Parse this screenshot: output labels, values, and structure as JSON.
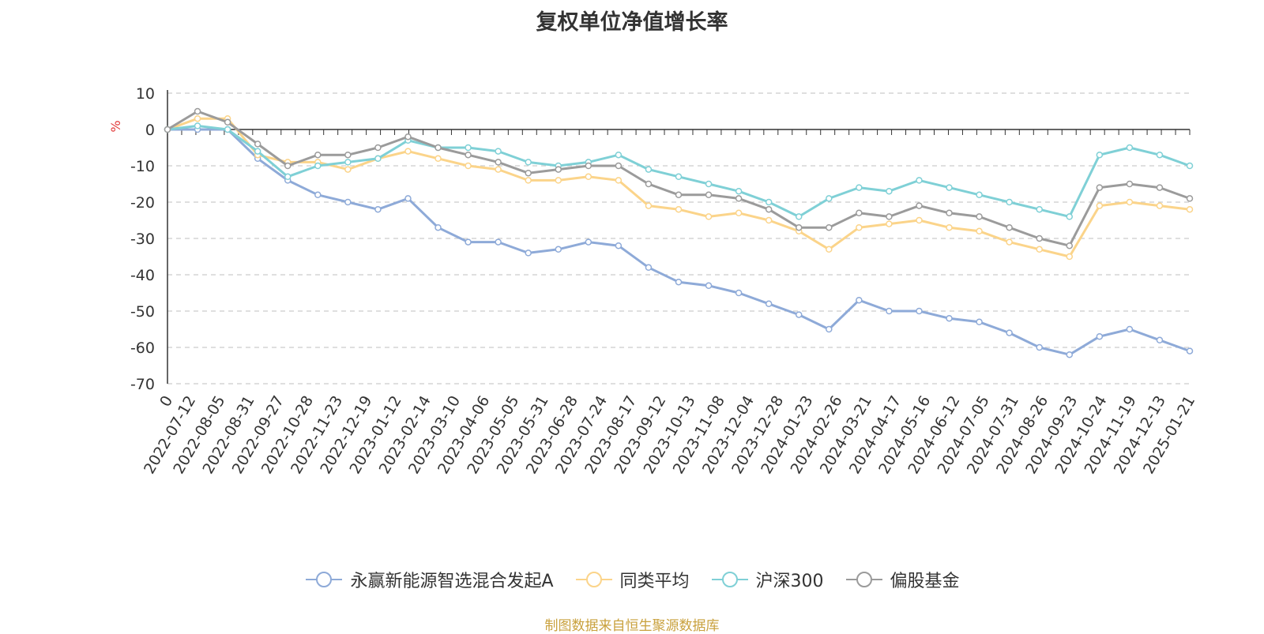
{
  "chart_data": {
    "type": "line",
    "title": "复权单位净值增长率",
    "ylabel": "%",
    "ylim": [
      -70,
      10
    ],
    "yticks": [
      10,
      0,
      -10,
      -20,
      -30,
      -40,
      -50,
      -60,
      -70
    ],
    "grid": true,
    "legend_position": "bottom",
    "x_dates": [
      "2022-07-12",
      "2022-08-05",
      "2022-08-31",
      "2022-09-27",
      "2022-10-28",
      "2022-11-23",
      "2022-12-19",
      "2023-01-12",
      "2023-02-14",
      "2023-03-10",
      "2023-04-06",
      "2023-05-05",
      "2023-05-31",
      "2023-06-28",
      "2023-07-24",
      "2023-08-17",
      "2023-09-12",
      "2023-10-13",
      "2023-11-08",
      "2023-12-04",
      "2023-12-28",
      "2024-01-23",
      "2024-02-26",
      "2024-03-21",
      "2024-04-17",
      "2024-05-16",
      "2024-06-12",
      "2024-07-05",
      "2024-07-31",
      "2024-08-26",
      "2024-09-23",
      "2024-10-24",
      "2024-11-19",
      "2024-12-13",
      "2025-01-21"
    ],
    "x_first_label": "0",
    "series": [
      {
        "name": "永赢新能源智选混合发起A",
        "color": "#8eaad8",
        "values": [
          0,
          0,
          0,
          -8,
          -14,
          -18,
          -20,
          -22,
          -19,
          -27,
          -31,
          -31,
          -34,
          -33,
          -31,
          -32,
          -38,
          -42,
          -43,
          -45,
          -48,
          -51,
          -55,
          -47,
          -50,
          -50,
          -52,
          -53,
          -56,
          -60,
          -62,
          -57,
          -55,
          -58,
          -61
        ]
      },
      {
        "name": "同类平均",
        "color": "#fbd48a",
        "values": [
          0,
          3,
          3,
          -7,
          -9,
          -9,
          -11,
          -8,
          -6,
          -8,
          -10,
          -11,
          -14,
          -14,
          -13,
          -14,
          -21,
          -22,
          -24,
          -23,
          -25,
          -28,
          -33,
          -27,
          -26,
          -25,
          -27,
          -28,
          -31,
          -33,
          -35,
          -21,
          -20,
          -21,
          -22
        ]
      },
      {
        "name": "沪深300",
        "color": "#7fd0d6",
        "values": [
          0,
          1,
          0,
          -6,
          -13,
          -10,
          -9,
          -8,
          -3,
          -5,
          -5,
          -6,
          -9,
          -10,
          -9,
          -7,
          -11,
          -13,
          -15,
          -17,
          -20,
          -24,
          -19,
          -16,
          -17,
          -14,
          -16,
          -18,
          -20,
          -22,
          -24,
          -7,
          -5,
          -7,
          -10
        ]
      },
      {
        "name": "偏股基金",
        "color": "#9b9b9b",
        "values": [
          0,
          5,
          2,
          -4,
          -10,
          -7,
          -7,
          -5,
          -2,
          -5,
          -7,
          -9,
          -12,
          -11,
          -10,
          -10,
          -15,
          -18,
          -18,
          -19,
          -22,
          -27,
          -27,
          -23,
          -24,
          -21,
          -23,
          -24,
          -27,
          -30,
          -32,
          -16,
          -15,
          -16,
          -19
        ]
      }
    ]
  },
  "legend": {
    "items": [
      "永赢新能源智选混合发起A",
      "同类平均",
      "沪深300",
      "偏股基金"
    ]
  },
  "source": {
    "text": "制图数据来自恒生聚源数据库",
    "color": "#c9a13d"
  },
  "colors": {
    "ylabel": "#e23a3a",
    "grid": "#cccccc",
    "axis": "#333333"
  }
}
